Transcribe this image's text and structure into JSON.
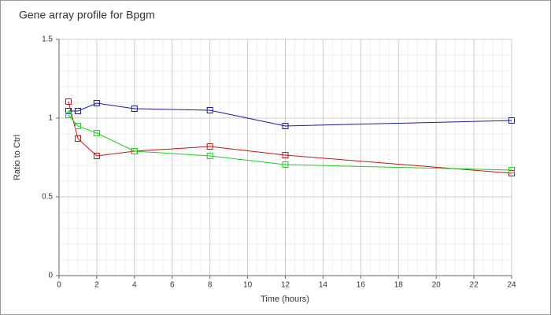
{
  "chart_data": {
    "type": "line",
    "title": "Gene array profile for Bpgm",
    "x_label": "Time (hours)",
    "y_label": "Ratio to Ctrl",
    "x": [
      0.5,
      1,
      2,
      4,
      8,
      12,
      24
    ],
    "series": [
      {
        "color": "#1a1aa6",
        "values": [
          1.045,
          1.045,
          1.095,
          1.06,
          1.05,
          0.95,
          0.985
        ]
      },
      {
        "color": "#c01818",
        "values": [
          1.105,
          0.87,
          0.76,
          0.79,
          0.82,
          0.765,
          0.65
        ]
      },
      {
        "color": "#22cc22",
        "values": [
          1.02,
          0.95,
          0.905,
          0.79,
          0.76,
          0.705,
          0.67
        ]
      }
    ],
    "xlim": [
      0,
      24
    ],
    "xticks": [
      0,
      2,
      4,
      6,
      8,
      10,
      12,
      14,
      16,
      18,
      20,
      22,
      24
    ],
    "ylim": [
      0,
      1.5
    ],
    "yticks": [
      0,
      0.5,
      1,
      1.5
    ],
    "grid": true
  }
}
